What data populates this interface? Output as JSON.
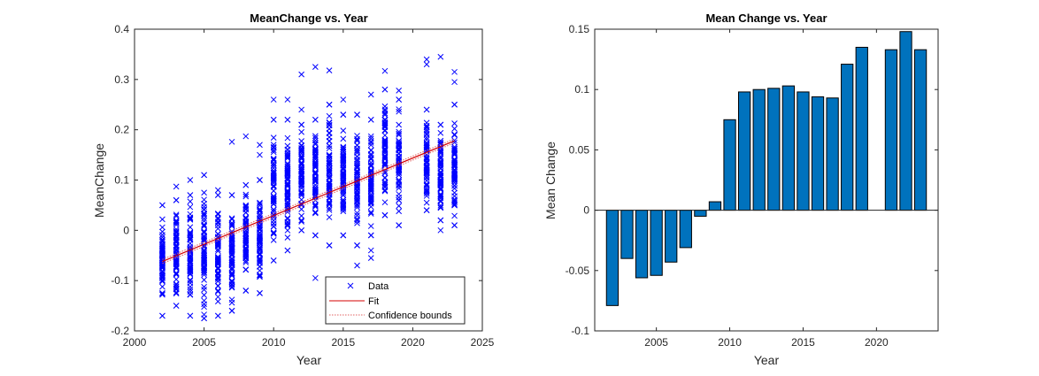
{
  "colors": {
    "scatter_marker": "#0000ff",
    "fit_line": "#d40000",
    "bounds_line": "#e06060",
    "bar_fill": "#0072bd",
    "bar_edge": "#000000",
    "axes": "#262626"
  },
  "chart_data": [
    {
      "type": "scatter",
      "title": "MeanChange vs. Year",
      "xlabel": "Year",
      "ylabel": "MeanChange",
      "xlim": [
        2000,
        2025
      ],
      "ylim": [
        -0.2,
        0.4
      ],
      "xticks": [
        "2000",
        "2005",
        "2010",
        "2015",
        "2020",
        "2025"
      ],
      "yticks": [
        "-0.2",
        "-0.1",
        "0",
        "0.1",
        "0.2",
        "0.3",
        "0.4"
      ],
      "grid": false,
      "legend_position": "bottom-right",
      "legend": [
        "Data",
        "Fit",
        "Confidence bounds"
      ],
      "marker": "x",
      "fit": {
        "x": [
          2002,
          2023
        ],
        "y": [
          -0.062,
          0.178
        ]
      },
      "confidence_halfwidth": 0.004,
      "points": [
        {
          "year": 2002,
          "min": -0.17,
          "max": 0.05,
          "outliers": []
        },
        {
          "year": 2003,
          "min": -0.15,
          "max": 0.06,
          "outliers": [
            0.087
          ]
        },
        {
          "year": 2004,
          "min": -0.17,
          "max": 0.07,
          "outliers": [
            0.1
          ]
        },
        {
          "year": 2005,
          "min": -0.175,
          "max": 0.11,
          "outliers": []
        },
        {
          "year": 2006,
          "min": -0.17,
          "max": 0.07,
          "outliers": [
            0.08
          ]
        },
        {
          "year": 2007,
          "min": -0.16,
          "max": 0.07,
          "outliers": [
            0.176
          ]
        },
        {
          "year": 2008,
          "min": -0.12,
          "max": 0.09,
          "outliers": [
            0.187
          ]
        },
        {
          "year": 2009,
          "min": -0.125,
          "max": 0.1,
          "outliers": [
            0.17,
            0.15
          ]
        },
        {
          "year": 2010,
          "min": -0.06,
          "max": 0.22,
          "outliers": [
            0.26
          ]
        },
        {
          "year": 2011,
          "min": -0.04,
          "max": 0.22,
          "outliers": [
            0.26
          ]
        },
        {
          "year": 2012,
          "min": 0.0,
          "max": 0.21,
          "outliers": [
            0.31,
            0.24
          ]
        },
        {
          "year": 2013,
          "min": -0.01,
          "max": 0.22,
          "outliers": [
            0.325,
            -0.095
          ]
        },
        {
          "year": 2014,
          "min": -0.03,
          "max": 0.25,
          "outliers": [
            0.318
          ]
        },
        {
          "year": 2015,
          "min": -0.01,
          "max": 0.23,
          "outliers": [
            0.26
          ]
        },
        {
          "year": 2016,
          "min": -0.03,
          "max": 0.23,
          "outliers": [
            -0.07
          ]
        },
        {
          "year": 2017,
          "min": -0.01,
          "max": 0.22,
          "outliers": [
            0.27,
            -0.04,
            -0.055
          ]
        },
        {
          "year": 2018,
          "min": 0.03,
          "max": 0.28,
          "outliers": [
            0.317
          ]
        },
        {
          "year": 2019,
          "min": 0.01,
          "max": 0.26,
          "outliers": [
            0.278
          ]
        },
        {
          "year": 2021,
          "min": 0.04,
          "max": 0.24,
          "outliers": [
            0.34,
            0.33
          ]
        },
        {
          "year": 2022,
          "min": 0.02,
          "max": 0.21,
          "outliers": [
            0.345,
            0.0
          ]
        },
        {
          "year": 2023,
          "min": 0.01,
          "max": 0.25,
          "outliers": [
            0.315,
            0.295
          ]
        }
      ]
    },
    {
      "type": "bar",
      "title": "Mean Change vs. Year",
      "xlabel": "Year",
      "ylabel": "Mean Change",
      "xlim": [
        2000.8,
        2024.2
      ],
      "ylim": [
        -0.1,
        0.15
      ],
      "xticks": [
        "2005",
        "2010",
        "2015",
        "2020"
      ],
      "yticks": [
        "-0.1",
        "-0.05",
        "0",
        "0.05",
        "0.1",
        "0.15"
      ],
      "grid": false,
      "categories": [
        2002,
        2003,
        2004,
        2005,
        2006,
        2007,
        2008,
        2009,
        2010,
        2011,
        2012,
        2013,
        2014,
        2015,
        2016,
        2017,
        2018,
        2019,
        2021,
        2022,
        2023
      ],
      "values": [
        -0.079,
        -0.04,
        -0.056,
        -0.054,
        -0.043,
        -0.031,
        -0.005,
        0.007,
        0.075,
        0.098,
        0.1,
        0.101,
        0.103,
        0.098,
        0.094,
        0.093,
        0.121,
        0.135,
        0.133,
        0.148,
        0.133
      ]
    }
  ]
}
